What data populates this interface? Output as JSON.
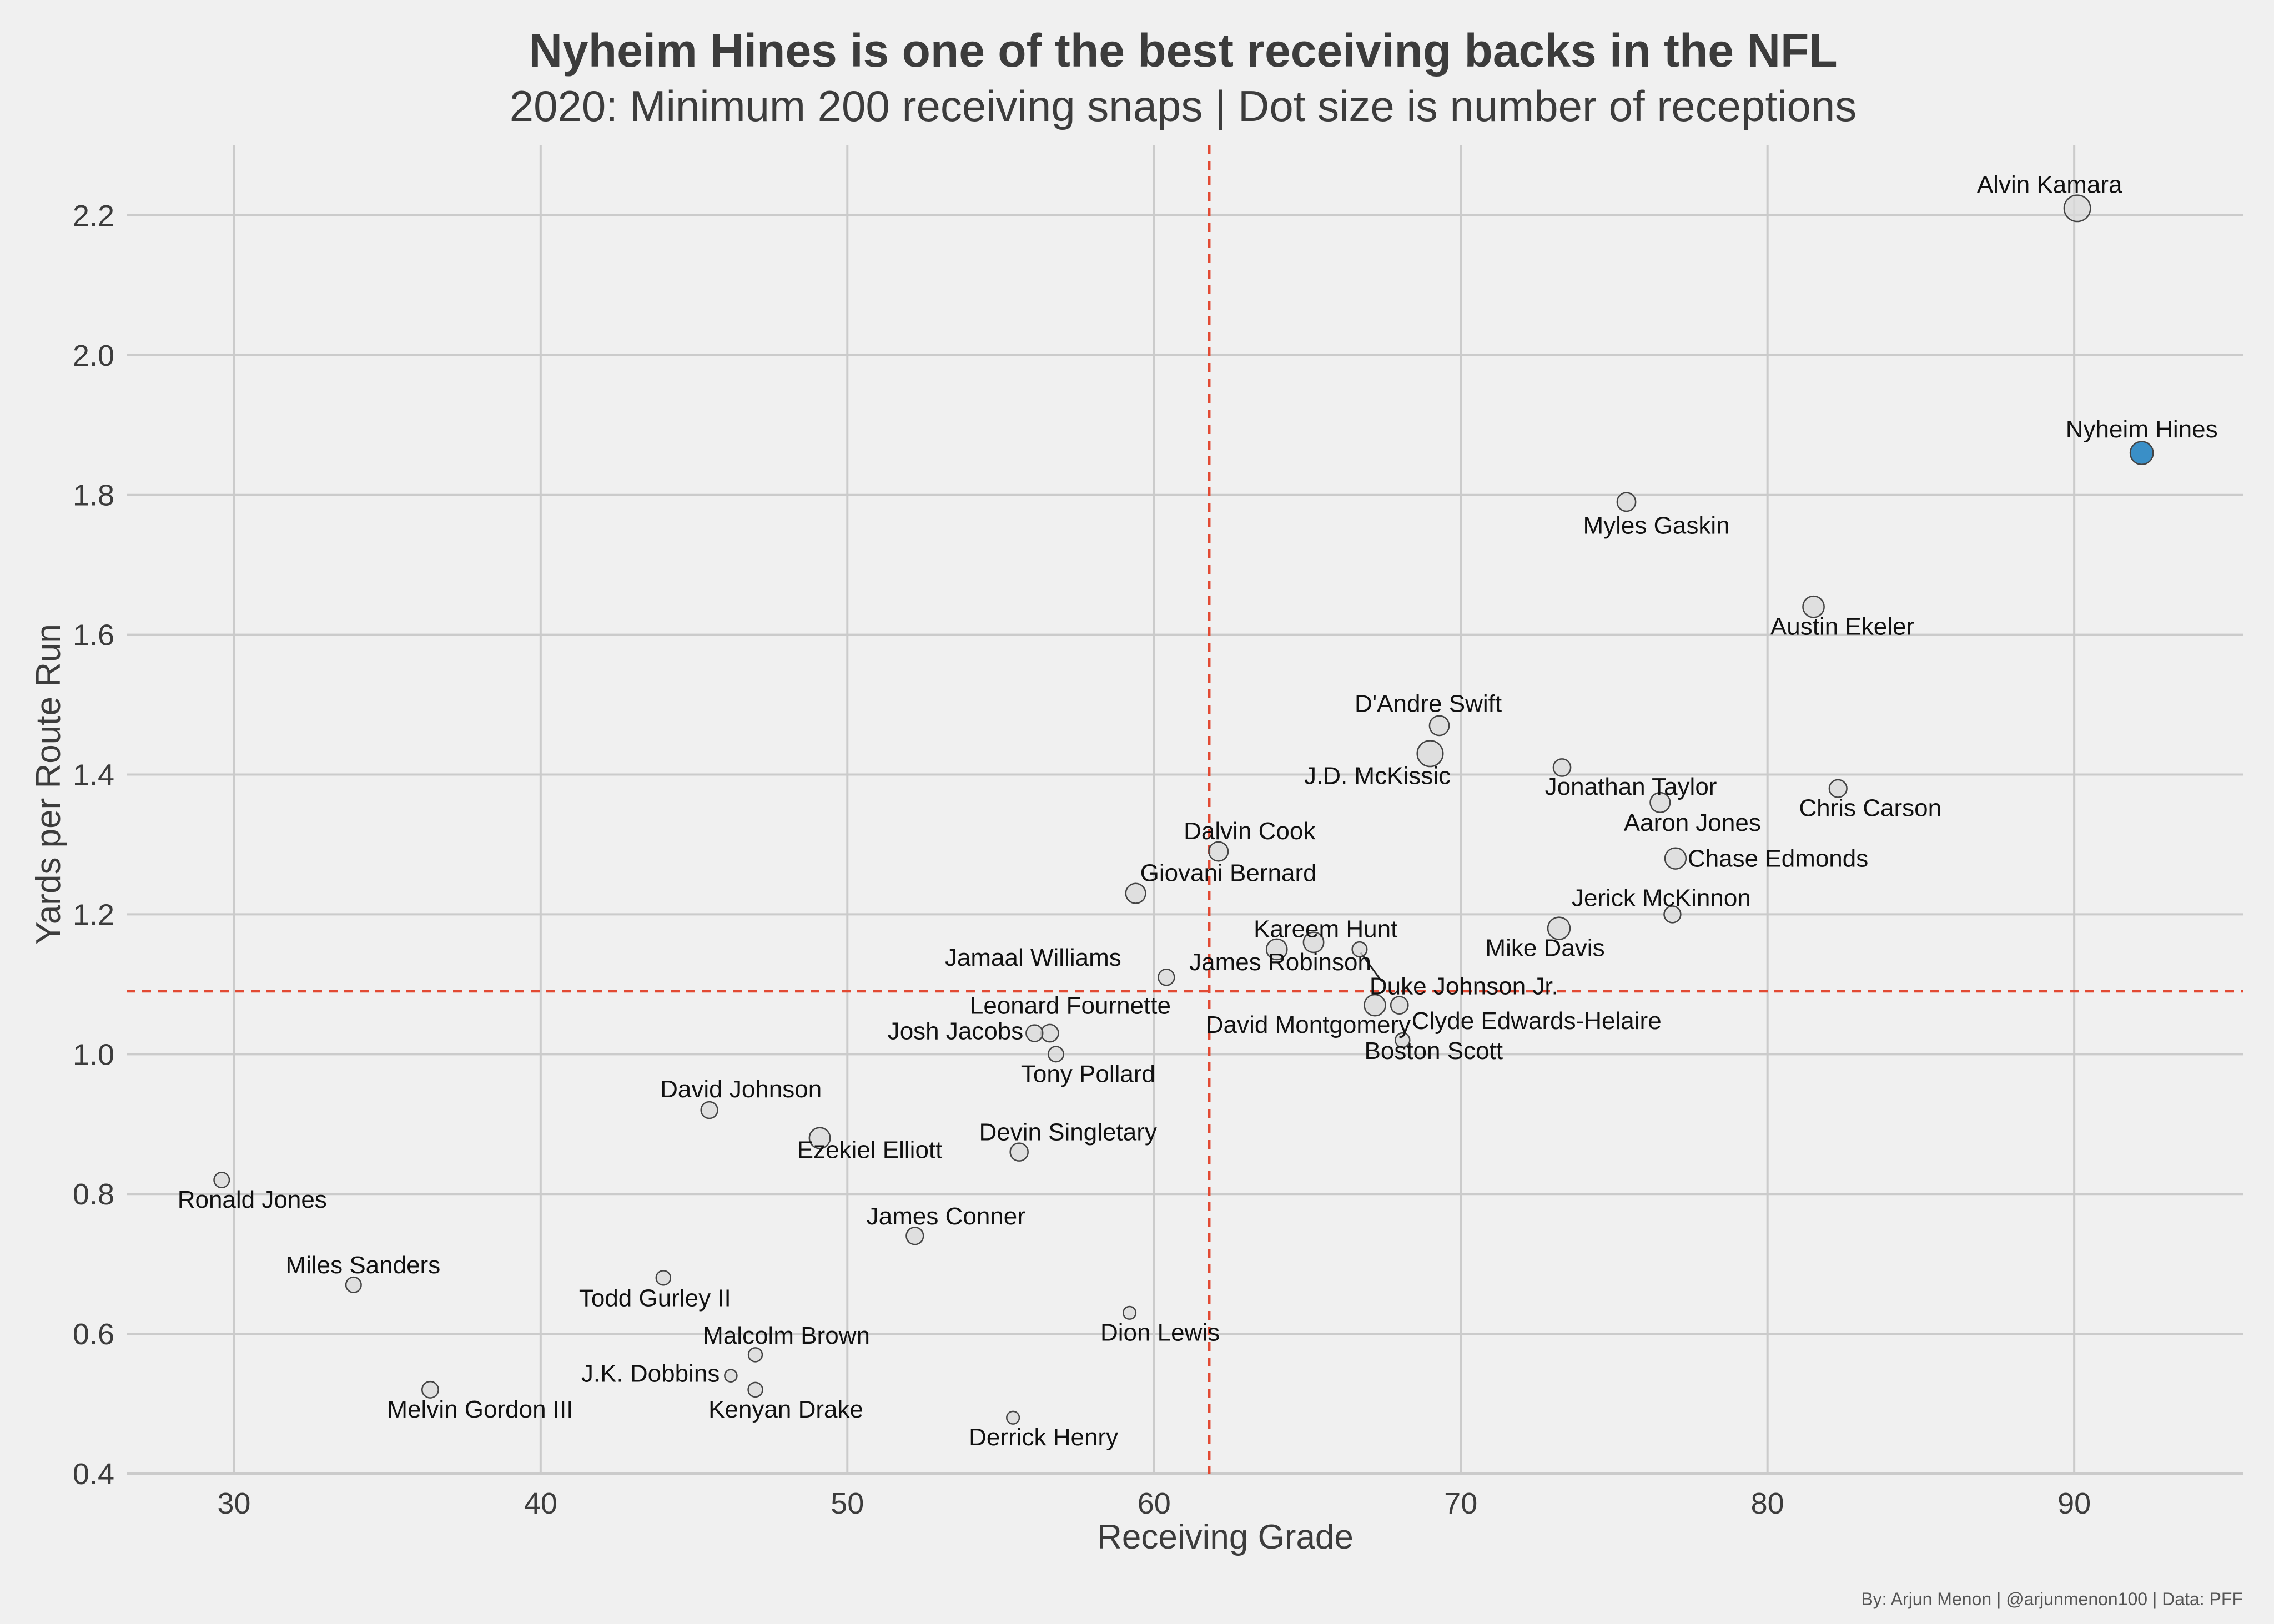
{
  "chart_data": {
    "type": "scatter",
    "title": "Nyheim Hines is one of the best receiving backs in the NFL",
    "subtitle": "2020: Minimum 200 receiving snaps | Dot size is number of receptions",
    "xlabel": "Receiving Grade",
    "ylabel": "Yards per Route Run",
    "xlim": [
      26.5,
      95.5
    ],
    "ylim": [
      0.4,
      2.3
    ],
    "xticks": [
      "30",
      "40",
      "50",
      "60",
      "70",
      "80",
      "90"
    ],
    "yticks": [
      "0.4",
      "0.6",
      "0.8",
      "1.0",
      "1.2",
      "1.4",
      "1.6",
      "1.8",
      "2.0",
      "2.2"
    ],
    "grid": true,
    "reference_lines": {
      "x": 61.8,
      "y": 1.09,
      "color": "#e24a33"
    },
    "point_color": "#d9d9d9",
    "highlight_color": "#3a8fc7",
    "credit": "By: Arjun Menon | @arjunmenon100 | Data: PFF",
    "points": [
      {
        "name": "Alvin Kamara",
        "x": 90.1,
        "y": 2.21,
        "receptions": 83
      },
      {
        "name": "Nyheim Hines",
        "x": 92.2,
        "y": 1.86,
        "receptions": 63,
        "highlight": true
      },
      {
        "name": "Myles Gaskin",
        "x": 75.4,
        "y": 1.79,
        "receptions": 41
      },
      {
        "name": "Austin Ekeler",
        "x": 81.5,
        "y": 1.64,
        "receptions": 54
      },
      {
        "name": "D'Andre Swift",
        "x": 69.3,
        "y": 1.47,
        "receptions": 46
      },
      {
        "name": "J.D. McKissic",
        "x": 69.0,
        "y": 1.43,
        "receptions": 80
      },
      {
        "name": "Jonathan Taylor",
        "x": 73.3,
        "y": 1.41,
        "receptions": 36
      },
      {
        "name": "Chris Carson",
        "x": 82.3,
        "y": 1.38,
        "receptions": 37
      },
      {
        "name": "Aaron Jones",
        "x": 76.5,
        "y": 1.36,
        "receptions": 47
      },
      {
        "name": "Dalvin Cook",
        "x": 62.1,
        "y": 1.29,
        "receptions": 44
      },
      {
        "name": "Chase Edmonds",
        "x": 77.0,
        "y": 1.28,
        "receptions": 53
      },
      {
        "name": "Giovani Bernard",
        "x": 59.4,
        "y": 1.23,
        "receptions": 47
      },
      {
        "name": "Jerick McKinnon",
        "x": 76.9,
        "y": 1.2,
        "receptions": 33
      },
      {
        "name": "Mike Davis",
        "x": 73.2,
        "y": 1.18,
        "receptions": 59
      },
      {
        "name": "Kareem Hunt",
        "x": 64.0,
        "y": 1.15,
        "receptions": 51
      },
      {
        "name": "James Robinson",
        "x": 65.2,
        "y": 1.16,
        "receptions": 49
      },
      {
        "name": "Duke Johnson Jr.",
        "x": 66.7,
        "y": 1.15,
        "receptions": 26
      },
      {
        "name": "Jamaal Williams",
        "x": 60.4,
        "y": 1.11,
        "receptions": 31
      },
      {
        "name": "David Montgomery",
        "x": 67.2,
        "y": 1.07,
        "receptions": 54
      },
      {
        "name": "Clyde Edwards-Helaire",
        "x": 68.0,
        "y": 1.07,
        "receptions": 36
      },
      {
        "name": "Leonard Fournette",
        "x": 56.6,
        "y": 1.03,
        "receptions": 36
      },
      {
        "name": "Josh Jacobs",
        "x": 56.1,
        "y": 1.03,
        "receptions": 33
      },
      {
        "name": "Boston Scott",
        "x": 68.1,
        "y": 1.02,
        "receptions": 25
      },
      {
        "name": "Tony Pollard",
        "x": 56.8,
        "y": 1.0,
        "receptions": 28
      },
      {
        "name": "David Johnson",
        "x": 45.5,
        "y": 0.92,
        "receptions": 33
      },
      {
        "name": "Ezekiel Elliott",
        "x": 49.1,
        "y": 0.88,
        "receptions": 52
      },
      {
        "name": "Devin Singletary",
        "x": 55.6,
        "y": 0.86,
        "receptions": 38
      },
      {
        "name": "Ronald Jones",
        "x": 29.6,
        "y": 0.82,
        "receptions": 28
      },
      {
        "name": "James Conner",
        "x": 52.2,
        "y": 0.74,
        "receptions": 35
      },
      {
        "name": "Miles Sanders",
        "x": 33.9,
        "y": 0.67,
        "receptions": 28
      },
      {
        "name": "Todd Gurley II",
        "x": 44.0,
        "y": 0.68,
        "receptions": 25
      },
      {
        "name": "Dion Lewis",
        "x": 59.2,
        "y": 0.63,
        "receptions": 19
      },
      {
        "name": "Malcolm Brown",
        "x": 47.0,
        "y": 0.57,
        "receptions": 23
      },
      {
        "name": "J.K. Dobbins",
        "x": 46.2,
        "y": 0.54,
        "receptions": 18
      },
      {
        "name": "Melvin Gordon III",
        "x": 36.4,
        "y": 0.52,
        "receptions": 32
      },
      {
        "name": "Kenyan Drake",
        "x": 47.0,
        "y": 0.52,
        "receptions": 25
      },
      {
        "name": "Derrick Henry",
        "x": 55.4,
        "y": 0.48,
        "receptions": 19
      }
    ]
  }
}
